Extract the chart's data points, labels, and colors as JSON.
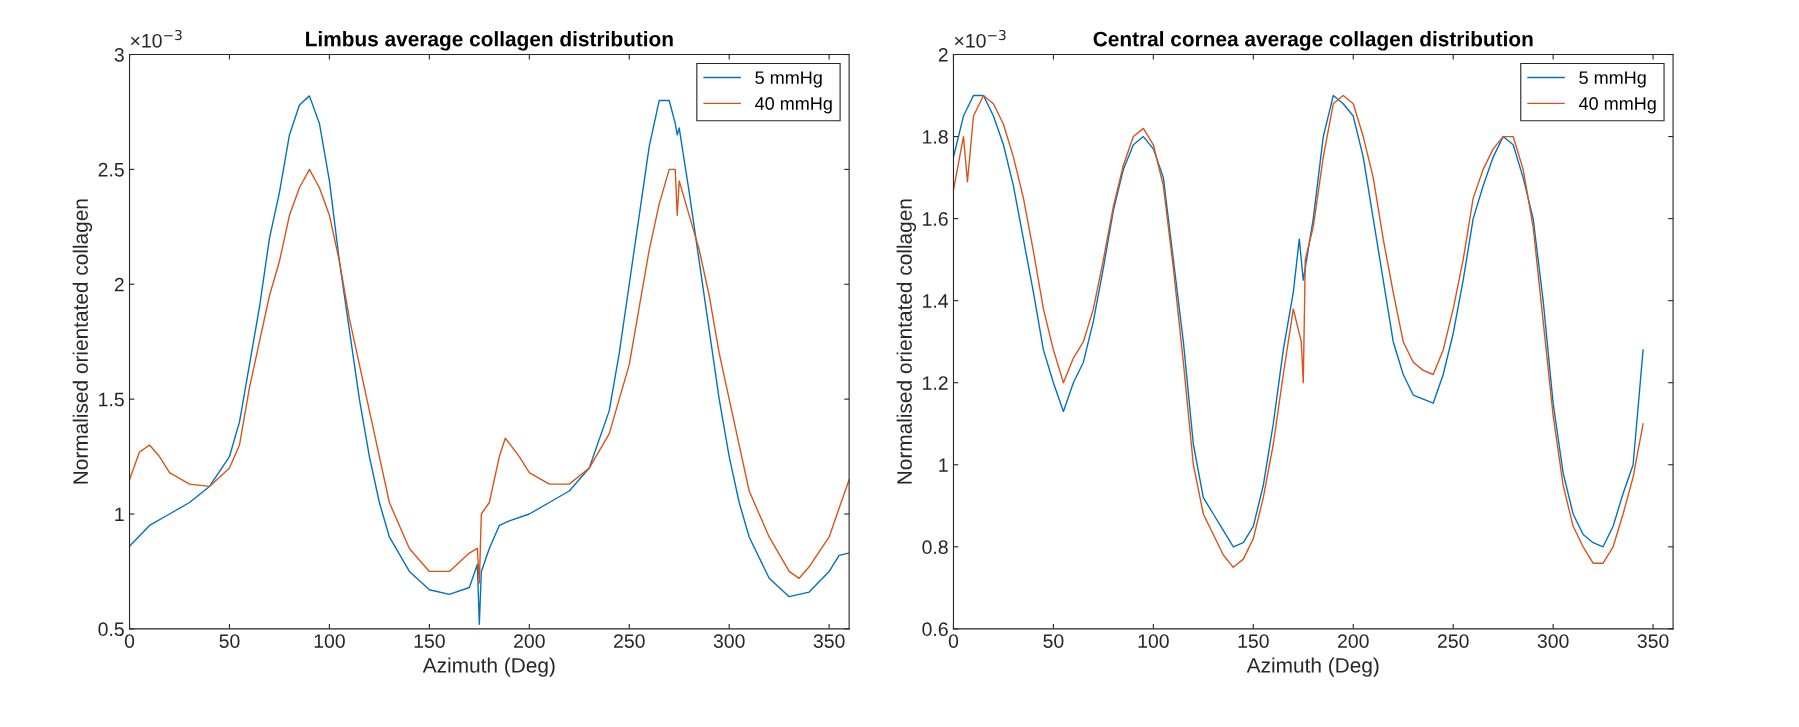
{
  "chart_data": [
    {
      "type": "line",
      "title": "Limbus average collagen distribution",
      "xlabel": "Azimuth (Deg)",
      "ylabel": "Normalised orientated collagen",
      "annotations": [
        "×10$^{−3}$"
      ],
      "xlim": [
        0,
        360
      ],
      "xticks": [
        0,
        50,
        100,
        150,
        200,
        250,
        300,
        350
      ],
      "ylim": [
        0.5,
        3
      ],
      "yticks": [
        0.5,
        1,
        1.5,
        2,
        2.5,
        3
      ],
      "grid": false,
      "legend": "top right",
      "series": [
        {
          "name": "5 mmHg",
          "color": "#0072bd",
          "x": [
            0,
            10,
            20,
            30,
            40,
            50,
            55,
            60,
            65,
            70,
            75,
            80,
            85,
            90,
            95,
            100,
            105,
            110,
            115,
            120,
            125,
            130,
            140,
            150,
            160,
            170,
            174,
            175,
            176,
            180,
            185,
            190,
            200,
            210,
            220,
            230,
            240,
            245,
            250,
            255,
            260,
            265,
            270,
            273,
            274,
            275,
            280,
            285,
            290,
            295,
            300,
            305,
            310,
            320,
            330,
            340,
            350,
            355,
            360
          ],
          "values": [
            0.86,
            0.95,
            1.0,
            1.05,
            1.12,
            1.25,
            1.4,
            1.65,
            1.9,
            2.2,
            2.4,
            2.65,
            2.78,
            2.82,
            2.7,
            2.45,
            2.1,
            1.8,
            1.5,
            1.25,
            1.05,
            0.9,
            0.75,
            0.67,
            0.65,
            0.68,
            0.78,
            0.52,
            0.75,
            0.85,
            0.95,
            0.97,
            1.0,
            1.05,
            1.1,
            1.2,
            1.45,
            1.7,
            2.0,
            2.3,
            2.6,
            2.8,
            2.8,
            2.7,
            2.65,
            2.68,
            2.4,
            2.1,
            1.8,
            1.5,
            1.25,
            1.05,
            0.9,
            0.72,
            0.64,
            0.66,
            0.75,
            0.82,
            0.83
          ]
        },
        {
          "name": "40 mmHg",
          "color": "#d95319",
          "x": [
            0,
            5,
            10,
            15,
            20,
            30,
            40,
            50,
            55,
            60,
            65,
            70,
            75,
            80,
            85,
            90,
            95,
            100,
            105,
            110,
            115,
            120,
            125,
            130,
            140,
            150,
            160,
            170,
            174,
            175,
            176,
            180,
            185,
            188,
            195,
            200,
            210,
            220,
            230,
            240,
            250,
            255,
            260,
            265,
            270,
            273,
            274,
            275,
            280,
            285,
            290,
            295,
            300,
            305,
            310,
            320,
            330,
            335,
            340,
            350,
            360
          ],
          "values": [
            1.15,
            1.27,
            1.3,
            1.25,
            1.18,
            1.13,
            1.12,
            1.2,
            1.3,
            1.55,
            1.75,
            1.95,
            2.1,
            2.3,
            2.42,
            2.5,
            2.42,
            2.3,
            2.1,
            1.85,
            1.65,
            1.45,
            1.25,
            1.05,
            0.85,
            0.75,
            0.75,
            0.83,
            0.85,
            0.7,
            1.0,
            1.05,
            1.25,
            1.33,
            1.25,
            1.18,
            1.13,
            1.13,
            1.2,
            1.35,
            1.65,
            1.9,
            2.15,
            2.35,
            2.5,
            2.5,
            2.3,
            2.45,
            2.3,
            2.15,
            1.95,
            1.7,
            1.5,
            1.3,
            1.1,
            0.9,
            0.75,
            0.72,
            0.77,
            0.9,
            1.15
          ]
        }
      ]
    },
    {
      "type": "line",
      "title": "Central cornea average collagen distribution",
      "xlabel": "Azimuth (Deg)",
      "ylabel": "Normalised orientated collagen",
      "annotations": [
        "×10$^{−3}$"
      ],
      "xlim": [
        0,
        360
      ],
      "xticks": [
        0,
        50,
        100,
        150,
        200,
        250,
        300,
        350
      ],
      "ylim": [
        0.6,
        2
      ],
      "yticks": [
        0.6,
        0.8,
        1,
        1.2,
        1.4,
        1.6,
        1.8,
        2
      ],
      "grid": false,
      "legend": "top right",
      "series": [
        {
          "name": "5 mmHg",
          "color": "#0072bd",
          "x": [
            0,
            5,
            10,
            15,
            20,
            25,
            30,
            35,
            40,
            45,
            50,
            55,
            60,
            65,
            70,
            75,
            80,
            85,
            90,
            95,
            100,
            105,
            110,
            115,
            120,
            125,
            130,
            135,
            140,
            145,
            150,
            155,
            160,
            165,
            170,
            173,
            175,
            180,
            185,
            190,
            195,
            200,
            205,
            210,
            215,
            220,
            225,
            230,
            235,
            240,
            245,
            250,
            255,
            260,
            265,
            270,
            275,
            280,
            285,
            290,
            295,
            300,
            305,
            310,
            315,
            320,
            325,
            330,
            335,
            340,
            345
          ],
          "values": [
            1.75,
            1.85,
            1.9,
            1.9,
            1.85,
            1.78,
            1.68,
            1.55,
            1.42,
            1.28,
            1.2,
            1.13,
            1.2,
            1.25,
            1.35,
            1.48,
            1.62,
            1.72,
            1.78,
            1.8,
            1.77,
            1.7,
            1.5,
            1.3,
            1.05,
            0.92,
            0.88,
            0.84,
            0.8,
            0.81,
            0.85,
            0.95,
            1.1,
            1.28,
            1.42,
            1.55,
            1.45,
            1.6,
            1.8,
            1.9,
            1.88,
            1.85,
            1.75,
            1.6,
            1.45,
            1.3,
            1.22,
            1.17,
            1.16,
            1.15,
            1.22,
            1.32,
            1.45,
            1.6,
            1.68,
            1.75,
            1.8,
            1.78,
            1.7,
            1.6,
            1.4,
            1.15,
            0.98,
            0.88,
            0.83,
            0.81,
            0.8,
            0.85,
            0.93,
            1.0,
            1.28
          ]
        },
        {
          "name": "40 mmHg",
          "color": "#d95319",
          "x": [
            0,
            5,
            7,
            10,
            15,
            20,
            25,
            30,
            35,
            40,
            45,
            50,
            55,
            60,
            65,
            70,
            75,
            80,
            85,
            90,
            95,
            100,
            105,
            110,
            115,
            120,
            125,
            130,
            135,
            140,
            145,
            150,
            155,
            160,
            165,
            170,
            174,
            175,
            176,
            180,
            185,
            190,
            195,
            200,
            205,
            210,
            215,
            220,
            225,
            230,
            235,
            240,
            245,
            250,
            255,
            260,
            265,
            270,
            275,
            280,
            285,
            290,
            295,
            300,
            305,
            310,
            315,
            320,
            325,
            330,
            335,
            340,
            345
          ],
          "values": [
            1.67,
            1.8,
            1.69,
            1.85,
            1.9,
            1.88,
            1.83,
            1.75,
            1.65,
            1.52,
            1.38,
            1.28,
            1.2,
            1.26,
            1.3,
            1.38,
            1.5,
            1.63,
            1.73,
            1.8,
            1.82,
            1.78,
            1.68,
            1.48,
            1.25,
            1.0,
            0.88,
            0.83,
            0.78,
            0.75,
            0.77,
            0.82,
            0.92,
            1.05,
            1.22,
            1.38,
            1.3,
            1.2,
            1.5,
            1.58,
            1.75,
            1.88,
            1.9,
            1.88,
            1.8,
            1.7,
            1.55,
            1.42,
            1.3,
            1.25,
            1.23,
            1.22,
            1.28,
            1.38,
            1.5,
            1.65,
            1.72,
            1.77,
            1.8,
            1.8,
            1.72,
            1.58,
            1.35,
            1.12,
            0.95,
            0.85,
            0.8,
            0.76,
            0.76,
            0.8,
            0.88,
            0.97,
            1.1
          ]
        }
      ]
    }
  ]
}
